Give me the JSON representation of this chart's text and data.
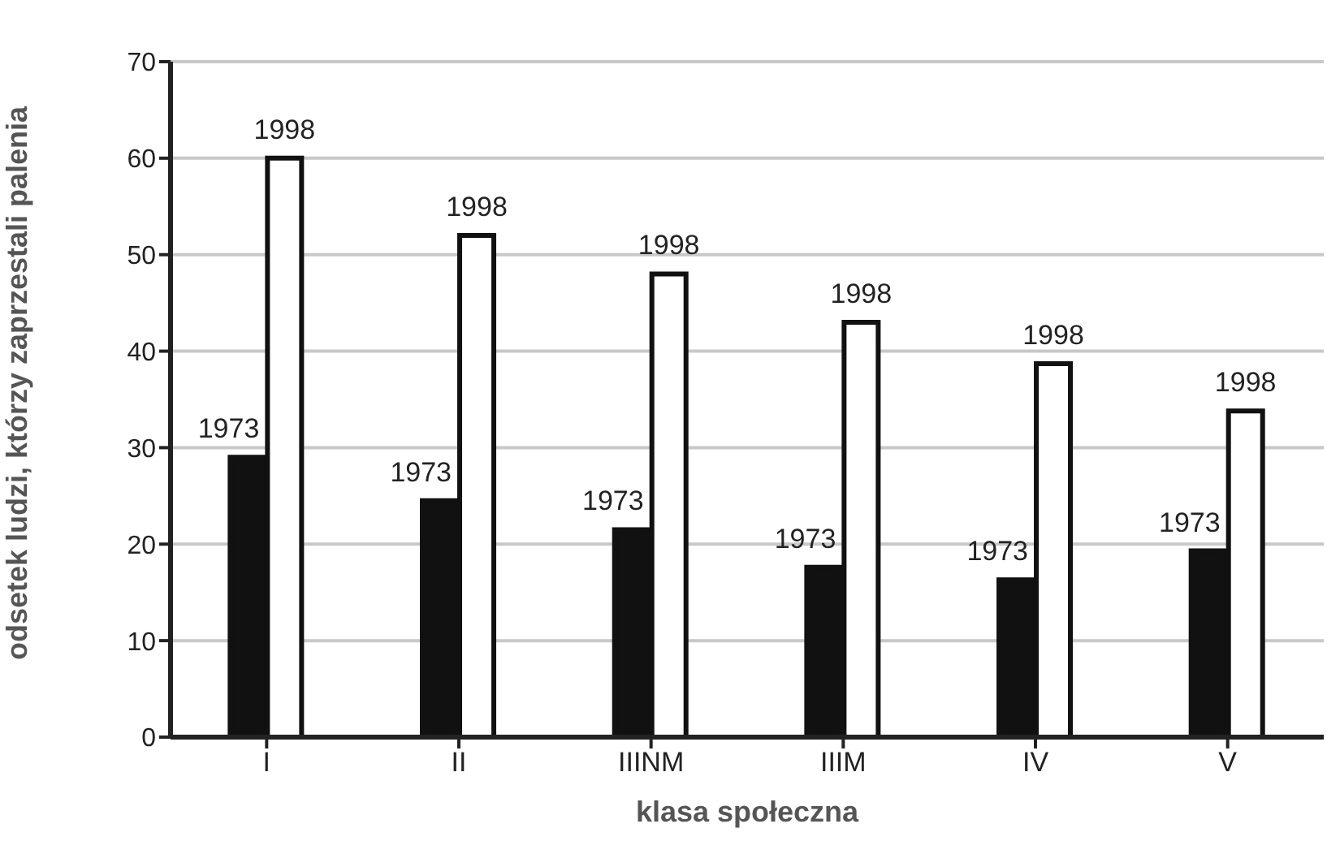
{
  "chart_data": {
    "type": "bar",
    "xlabel": "klasa społeczna",
    "ylabel": "odsetek ludzi, którzy zaprzestali palenia",
    "categories": [
      "I",
      "II",
      "IIINM",
      "IIIM",
      "IV",
      "V"
    ],
    "series": [
      {
        "name": "1973",
        "color": "#111111",
        "values": [
          29,
          24.5,
          21.5,
          17.6,
          16.3,
          19.3
        ]
      },
      {
        "name": "1998",
        "color": "#ffffff",
        "values": [
          60,
          52,
          48,
          43,
          38.7,
          33.8
        ]
      }
    ],
    "ylim": [
      0,
      70
    ],
    "yticks": [
      0,
      10,
      20,
      30,
      40,
      50,
      60,
      70
    ],
    "grid": "y",
    "legend": false
  }
}
